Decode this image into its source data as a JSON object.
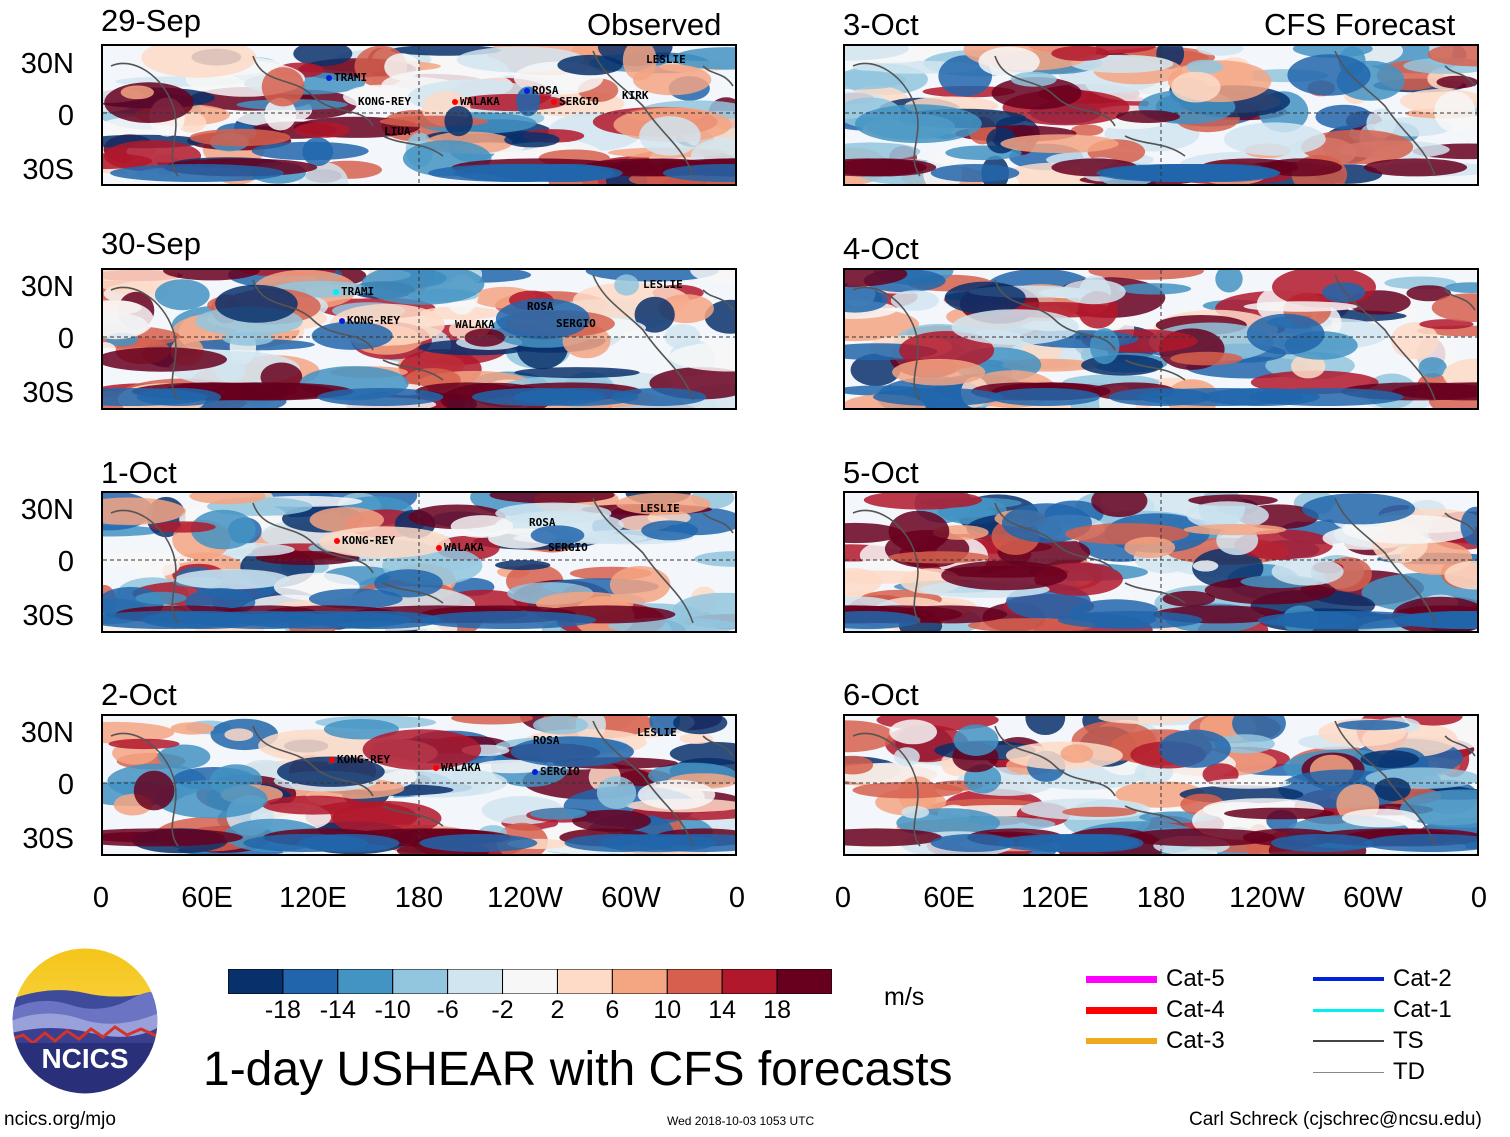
{
  "header": {
    "observed_label": "Observed",
    "forecast_label": "CFS Forecast"
  },
  "panels_left": [
    {
      "date": "29-Sep"
    },
    {
      "date": "30-Sep"
    },
    {
      "date": "1-Oct"
    },
    {
      "date": "2-Oct"
    }
  ],
  "panels_right": [
    {
      "date": "3-Oct"
    },
    {
      "date": "4-Oct"
    },
    {
      "date": "5-Oct"
    },
    {
      "date": "6-Oct"
    }
  ],
  "lat_labels": [
    "30N",
    "0",
    "30S"
  ],
  "lon_labels": [
    "0",
    "60E",
    "120E",
    "180",
    "120W",
    "60W",
    "0"
  ],
  "storms": [
    [
      {
        "name": "TRAMI"
      },
      {
        "name": "KONG-REY"
      },
      {
        "name": "WALAKA"
      },
      {
        "name": "LIUA"
      },
      {
        "name": "ROSA"
      },
      {
        "name": "SERGIO"
      },
      {
        "name": "KIRK"
      },
      {
        "name": "LESLIE"
      }
    ],
    [
      {
        "name": "TRAMI"
      },
      {
        "name": "KONG-REY"
      },
      {
        "name": "WALAKA"
      },
      {
        "name": "ROSA"
      },
      {
        "name": "SERGIO"
      },
      {
        "name": "LESLIE"
      }
    ],
    [
      {
        "name": "KONG-REY"
      },
      {
        "name": "WALAKA"
      },
      {
        "name": "ROSA"
      },
      {
        "name": "SERGIO"
      },
      {
        "name": "LESLIE"
      }
    ],
    [
      {
        "name": "KONG-REY"
      },
      {
        "name": "WALAKA"
      },
      {
        "name": "ROSA"
      },
      {
        "name": "SERGIO"
      },
      {
        "name": "LESLIE"
      }
    ]
  ],
  "colorbar": {
    "colors": [
      "#08306b",
      "#2166ac",
      "#4393c3",
      "#92c5de",
      "#d1e5f0",
      "#f7f7f7",
      "#fddbc7",
      "#f4a582",
      "#d6604d",
      "#b2182b",
      "#67001f"
    ],
    "ticks": [
      "-18",
      "-14",
      "-10",
      "-6",
      "-2",
      "2",
      "6",
      "10",
      "14",
      "18"
    ],
    "units": "m/s"
  },
  "legend": [
    {
      "label": "Cat-5",
      "color": "#ff00ff"
    },
    {
      "label": "Cat-4",
      "color": "#ff0000"
    },
    {
      "label": "Cat-3",
      "color": "#f0a81c"
    },
    {
      "label": "Cat-2",
      "color": "#0022dd"
    },
    {
      "label": "Cat-1",
      "color": "#00f0f0"
    },
    {
      "label": "TS",
      "color": "#444444"
    },
    {
      "label": "TD",
      "color": "#888888"
    }
  ],
  "logo": {
    "text": "NCICS"
  },
  "footer": {
    "main_title": "1-day USHEAR with CFS forecasts",
    "website": "ncics.org/mjo",
    "timestamp": "Wed 2018-10-03 1053 UTC",
    "credit": "Carl Schreck (cjschrec@ncsu.edu)"
  }
}
